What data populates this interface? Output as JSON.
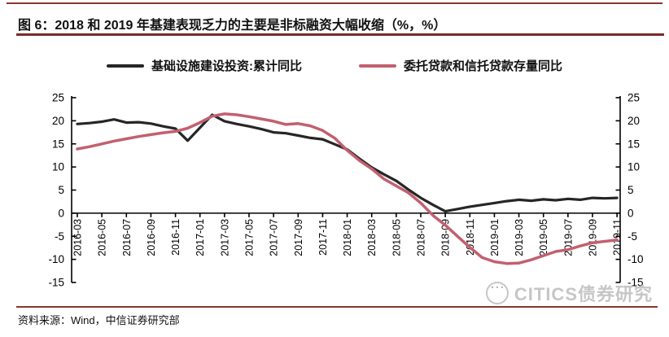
{
  "title": "图 6：2018 和 2019 年基建表现乏力的主要是非标融资大幅收缩（%，%）",
  "legend": [
    {
      "label": "基础设施建设投资:累计同比",
      "color": "#262626"
    },
    {
      "label": "委托贷款和信托贷款存量同比",
      "color": "#c2606f"
    }
  ],
  "source_note": "资料来源：Wind，中信证券研究部",
  "watermark": {
    "logo_icon": "citics-circle-logo",
    "text": "CITICS债券研究"
  },
  "colors": {
    "top_rule": "#8a3531",
    "title_underline": "#7a2b28",
    "bottom_rule": "#8a3531",
    "axis": "#000000",
    "series_infra": "#262626",
    "series_loans": "#c2606f",
    "background": "#ffffff"
  },
  "chart_data": {
    "type": "line",
    "title": "",
    "xlabel": "",
    "ylabel": "%",
    "x": [
      "2016-03",
      "2016-04",
      "2016-05",
      "2016-06",
      "2016-07",
      "2016-08",
      "2016-09",
      "2016-10",
      "2016-11",
      "2016-12",
      "2017-01",
      "2017-02",
      "2017-03",
      "2017-04",
      "2017-05",
      "2017-06",
      "2017-07",
      "2017-08",
      "2017-09",
      "2017-10",
      "2017-11",
      "2017-12",
      "2018-01",
      "2018-02",
      "2018-03",
      "2018-04",
      "2018-05",
      "2018-06",
      "2018-07",
      "2018-08",
      "2018-09",
      "2018-10",
      "2018-11",
      "2018-12",
      "2019-01",
      "2019-02",
      "2019-03",
      "2019-04",
      "2019-05",
      "2019-06",
      "2019-07",
      "2019-08",
      "2019-09",
      "2019-10",
      "2019-11"
    ],
    "series": [
      {
        "name": "基础设施建设投资:累计同比",
        "color": "#262626",
        "axis": "left",
        "values": [
          19.3,
          19.5,
          19.8,
          20.3,
          19.6,
          19.7,
          19.4,
          18.8,
          18.3,
          15.7,
          18.5,
          21.3,
          19.9,
          19.3,
          18.8,
          18.2,
          17.5,
          17.3,
          16.8,
          16.3,
          16.0,
          14.9,
          13.8,
          11.8,
          9.9,
          8.4,
          7.0,
          5.1,
          3.3,
          1.8,
          0.4,
          0.9,
          1.4,
          1.8,
          2.2,
          2.6,
          2.9,
          2.7,
          3.0,
          2.8,
          3.1,
          2.9,
          3.3,
          3.2,
          3.3
        ]
      },
      {
        "name": "委托贷款和信托贷款存量同比",
        "color": "#c2606f",
        "axis": "right",
        "values": [
          13.9,
          14.4,
          15.0,
          15.6,
          16.1,
          16.6,
          17.0,
          17.4,
          17.7,
          18.4,
          19.6,
          21.0,
          21.5,
          21.3,
          20.9,
          20.4,
          19.9,
          19.2,
          19.4,
          18.9,
          17.9,
          16.2,
          13.6,
          11.4,
          9.6,
          7.4,
          5.9,
          4.4,
          2.2,
          -0.5,
          -2.6,
          -5.0,
          -7.4,
          -9.6,
          -10.5,
          -10.9,
          -10.8,
          -10.1,
          -9.2,
          -8.3,
          -7.9,
          -7.1,
          -6.4,
          -6.1,
          -5.8
        ]
      }
    ],
    "ylim": [
      -15,
      25
    ],
    "yticks": [
      -15,
      -10,
      -5,
      0,
      5,
      10,
      15,
      20,
      25
    ],
    "dual_axis": "identical left and right value axes",
    "xtick_labels_every": 2,
    "x_labels_rotation_deg": 90,
    "grid": false,
    "legend_position": "top",
    "x_labels_on_zero_line": true
  }
}
